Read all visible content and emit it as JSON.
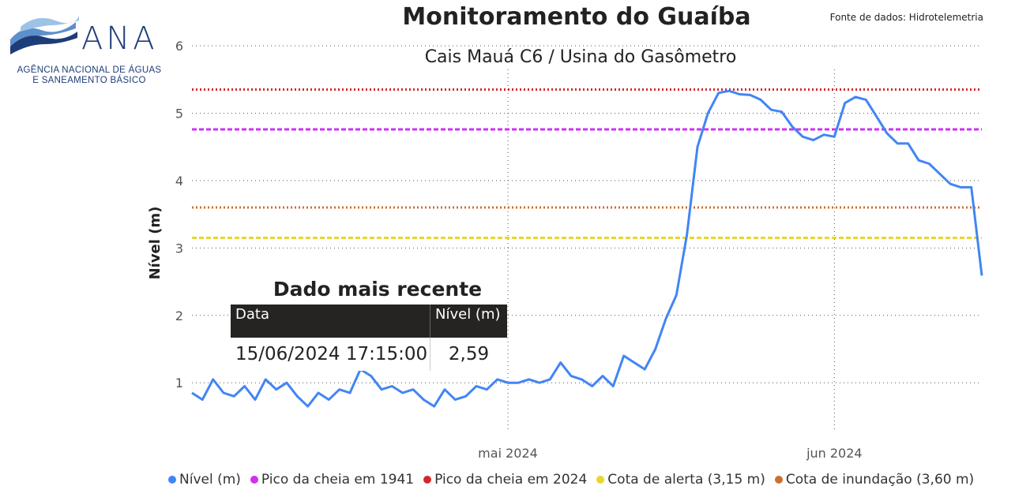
{
  "logo": {
    "wordmark": "ANA",
    "line1": "AGÊNCIA NACIONAL DE ÁGUAS",
    "line2": "E SANEAMENTO BÁSICO"
  },
  "header": {
    "title": "Monitoramento do Guaíba",
    "subtitle": "Cais Mauá C6 / Usina do Gasômetro",
    "source": "Fonte de dados: Hidrotelemetria"
  },
  "recent": {
    "title": "Dado mais recente",
    "col_date": "Data",
    "col_level": "Nível (m)",
    "date_value": "15/06/2024 17:15:00",
    "level_value": "2,59"
  },
  "chart_data": {
    "type": "line",
    "ylabel": "Nível (m)",
    "xlabel": "",
    "ylim": [
      0.3,
      6
    ],
    "yticks": [
      1,
      2,
      3,
      4,
      5,
      6
    ],
    "xlim": [
      "2024-04-01",
      "2024-06-15"
    ],
    "xticks": [
      {
        "date": "2024-05-01",
        "label": "mai 2024"
      },
      {
        "date": "2024-06-01",
        "label": "jun 2024"
      }
    ],
    "grid": true,
    "legend_position": "bottom",
    "series": [
      {
        "name": "Nível (m)",
        "style": "solid",
        "color": "#4285f4",
        "points": [
          [
            "2024-04-01",
            0.85
          ],
          [
            "2024-04-02",
            0.75
          ],
          [
            "2024-04-03",
            1.05
          ],
          [
            "2024-04-04",
            0.85
          ],
          [
            "2024-04-05",
            0.8
          ],
          [
            "2024-04-06",
            0.95
          ],
          [
            "2024-04-07",
            0.75
          ],
          [
            "2024-04-08",
            1.05
          ],
          [
            "2024-04-09",
            0.9
          ],
          [
            "2024-04-10",
            1.0
          ],
          [
            "2024-04-11",
            0.8
          ],
          [
            "2024-04-12",
            0.65
          ],
          [
            "2024-04-13",
            0.85
          ],
          [
            "2024-04-14",
            0.75
          ],
          [
            "2024-04-15",
            0.9
          ],
          [
            "2024-04-16",
            0.85
          ],
          [
            "2024-04-17",
            1.2
          ],
          [
            "2024-04-18",
            1.1
          ],
          [
            "2024-04-19",
            0.9
          ],
          [
            "2024-04-20",
            0.95
          ],
          [
            "2024-04-21",
            0.85
          ],
          [
            "2024-04-22",
            0.9
          ],
          [
            "2024-04-23",
            0.75
          ],
          [
            "2024-04-24",
            0.65
          ],
          [
            "2024-04-25",
            0.9
          ],
          [
            "2024-04-26",
            0.75
          ],
          [
            "2024-04-27",
            0.8
          ],
          [
            "2024-04-28",
            0.95
          ],
          [
            "2024-04-29",
            0.9
          ],
          [
            "2024-04-30",
            1.05
          ],
          [
            "2024-05-01",
            1.0
          ],
          [
            "2024-05-02",
            1.0
          ],
          [
            "2024-05-03",
            1.05
          ],
          [
            "2024-05-04",
            1.0
          ],
          [
            "2024-05-05",
            1.05
          ],
          [
            "2024-05-06",
            1.3
          ],
          [
            "2024-05-07",
            1.1
          ],
          [
            "2024-05-08",
            1.05
          ],
          [
            "2024-05-09",
            0.95
          ],
          [
            "2024-05-10",
            1.1
          ],
          [
            "2024-05-11",
            0.95
          ],
          [
            "2024-05-12",
            1.4
          ],
          [
            "2024-05-13",
            1.3
          ],
          [
            "2024-05-14",
            1.2
          ],
          [
            "2024-05-15",
            1.5
          ],
          [
            "2024-05-16",
            1.95
          ],
          [
            "2024-05-17",
            2.3
          ],
          [
            "2024-05-18",
            3.2
          ],
          [
            "2024-05-19",
            4.5
          ],
          [
            "2024-05-20",
            5.0
          ],
          [
            "2024-05-21",
            5.3
          ],
          [
            "2024-05-22",
            5.33
          ],
          [
            "2024-05-23",
            5.28
          ],
          [
            "2024-05-24",
            5.27
          ],
          [
            "2024-05-25",
            5.2
          ],
          [
            "2024-05-26",
            5.05
          ],
          [
            "2024-05-27",
            5.02
          ],
          [
            "2024-05-28",
            4.8
          ],
          [
            "2024-05-29",
            4.65
          ],
          [
            "2024-05-30",
            4.6
          ],
          [
            "2024-05-31",
            4.68
          ],
          [
            "2024-06-01",
            4.65
          ],
          [
            "2024-06-02",
            5.15
          ],
          [
            "2024-06-03",
            5.24
          ],
          [
            "2024-06-04",
            5.2
          ],
          [
            "2024-06-05",
            4.95
          ],
          [
            "2024-06-06",
            4.7
          ],
          [
            "2024-06-07",
            4.55
          ],
          [
            "2024-06-08",
            4.55
          ],
          [
            "2024-06-09",
            4.3
          ],
          [
            "2024-06-10",
            4.25
          ],
          [
            "2024-06-11",
            4.1
          ],
          [
            "2024-06-12",
            3.95
          ],
          [
            "2024-06-13",
            3.9
          ],
          [
            "2024-06-14",
            3.9
          ],
          [
            "2024-06-15",
            2.59
          ]
        ]
      },
      {
        "name": "Pico da cheia em 1941",
        "style": "dashed",
        "color": "#cc33ee",
        "value": 4.76
      },
      {
        "name": "Pico da cheia em 2024",
        "style": "dotted",
        "color": "#d62728",
        "value": 5.35
      },
      {
        "name": "Cota de alerta (3,15 m)",
        "style": "dashed",
        "color": "#e8d630",
        "value": 3.15
      },
      {
        "name": "Cota de inundação (3,60 m)",
        "style": "dotted",
        "color": "#cc6f2e",
        "value": 3.6
      }
    ]
  }
}
